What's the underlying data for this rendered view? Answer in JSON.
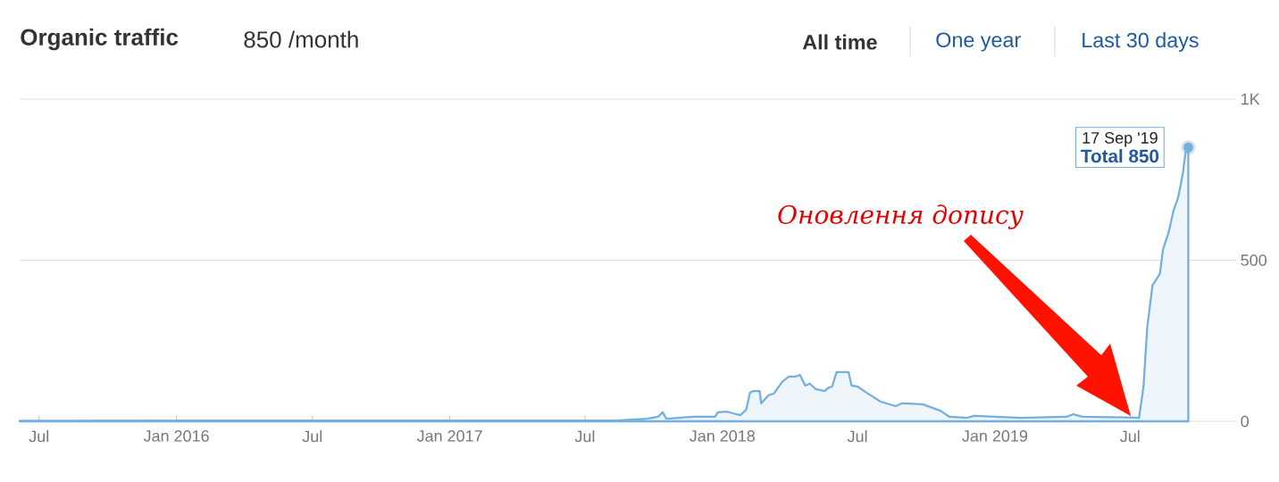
{
  "chart_data": {
    "type": "area",
    "title": "Organic traffic",
    "subtitle": "850 /month",
    "annotations": [
      "All time",
      "One year",
      "Last 30 days",
      {
        "text": "17 Sep '19",
        "x": "2019-09-17",
        "y": 850
      },
      {
        "text": "Total 850",
        "x": "2019-09-17",
        "y": 850
      },
      "Оновлення допису"
    ],
    "x": [
      "2015-06-05",
      "2017-08-17",
      "2017-09-22",
      "2017-10-07",
      "2017-10-13",
      "2017-10-18",
      "2017-11-05",
      "2017-11-24",
      "2017-12-22",
      "2017-12-26",
      "2018-01-07",
      "2018-01-15",
      "2018-01-25",
      "2018-02-02",
      "2018-02-07",
      "2018-02-12",
      "2018-02-20",
      "2018-02-22",
      "2018-03-04",
      "2018-03-11",
      "2018-03-22",
      "2018-03-31",
      "2018-04-09",
      "2018-04-15",
      "2018-04-22",
      "2018-04-28",
      "2018-05-06",
      "2018-05-18",
      "2018-05-22",
      "2018-05-28",
      "2018-06-03",
      "2018-06-19",
      "2018-06-23",
      "2018-07-01",
      "2018-07-13",
      "2018-08-01",
      "2018-08-21",
      "2018-08-30",
      "2018-09-26",
      "2018-10-20",
      "2018-11-01",
      "2018-11-25",
      "2018-12-04",
      "2019-02-04",
      "2019-04-07",
      "2019-04-16",
      "2019-04-28",
      "2019-07-13",
      "2019-07-19",
      "2019-07-24",
      "2019-07-31",
      "2019-08-10",
      "2019-08-14",
      "2019-08-22",
      "2019-08-28",
      "2019-09-03",
      "2019-09-07",
      "2019-09-10",
      "2019-09-13",
      "2019-09-17"
    ],
    "values": [
      2,
      3,
      8,
      14,
      28,
      8,
      11,
      14,
      14,
      28,
      30,
      25,
      19,
      36,
      89,
      94,
      94,
      56,
      81,
      86,
      122,
      139,
      139,
      144,
      111,
      117,
      100,
      94,
      103,
      108,
      153,
      153,
      111,
      108,
      89,
      61,
      47,
      56,
      53,
      33,
      14,
      11,
      17,
      11,
      14,
      22,
      14,
      11,
      108,
      292,
      422,
      458,
      533,
      589,
      653,
      692,
      736,
      775,
      831,
      850
    ],
    "color": "#74afde",
    "xlim": [
      "2015-06-05",
      "2019-11-20"
    ],
    "ylim": [
      0,
      1000
    ],
    "xticks": [
      {
        "value": "2015-07-01",
        "label": "Jul"
      },
      {
        "value": "2016-01-01",
        "label": "Jan 2016"
      },
      {
        "value": "2016-07-01",
        "label": "Jul"
      },
      {
        "value": "2017-01-01",
        "label": "Jan 2017"
      },
      {
        "value": "2017-07-01",
        "label": "Jul"
      },
      {
        "value": "2018-01-01",
        "label": "Jan 2018"
      },
      {
        "value": "2018-07-01",
        "label": "Jul"
      },
      {
        "value": "2019-01-01",
        "label": "Jan 2019"
      },
      {
        "value": "2019-07-01",
        "label": "Jul"
      }
    ],
    "yticks": [
      0,
      500,
      {
        "value": 1000,
        "label": "1K"
      }
    ],
    "grid": "y"
  }
}
